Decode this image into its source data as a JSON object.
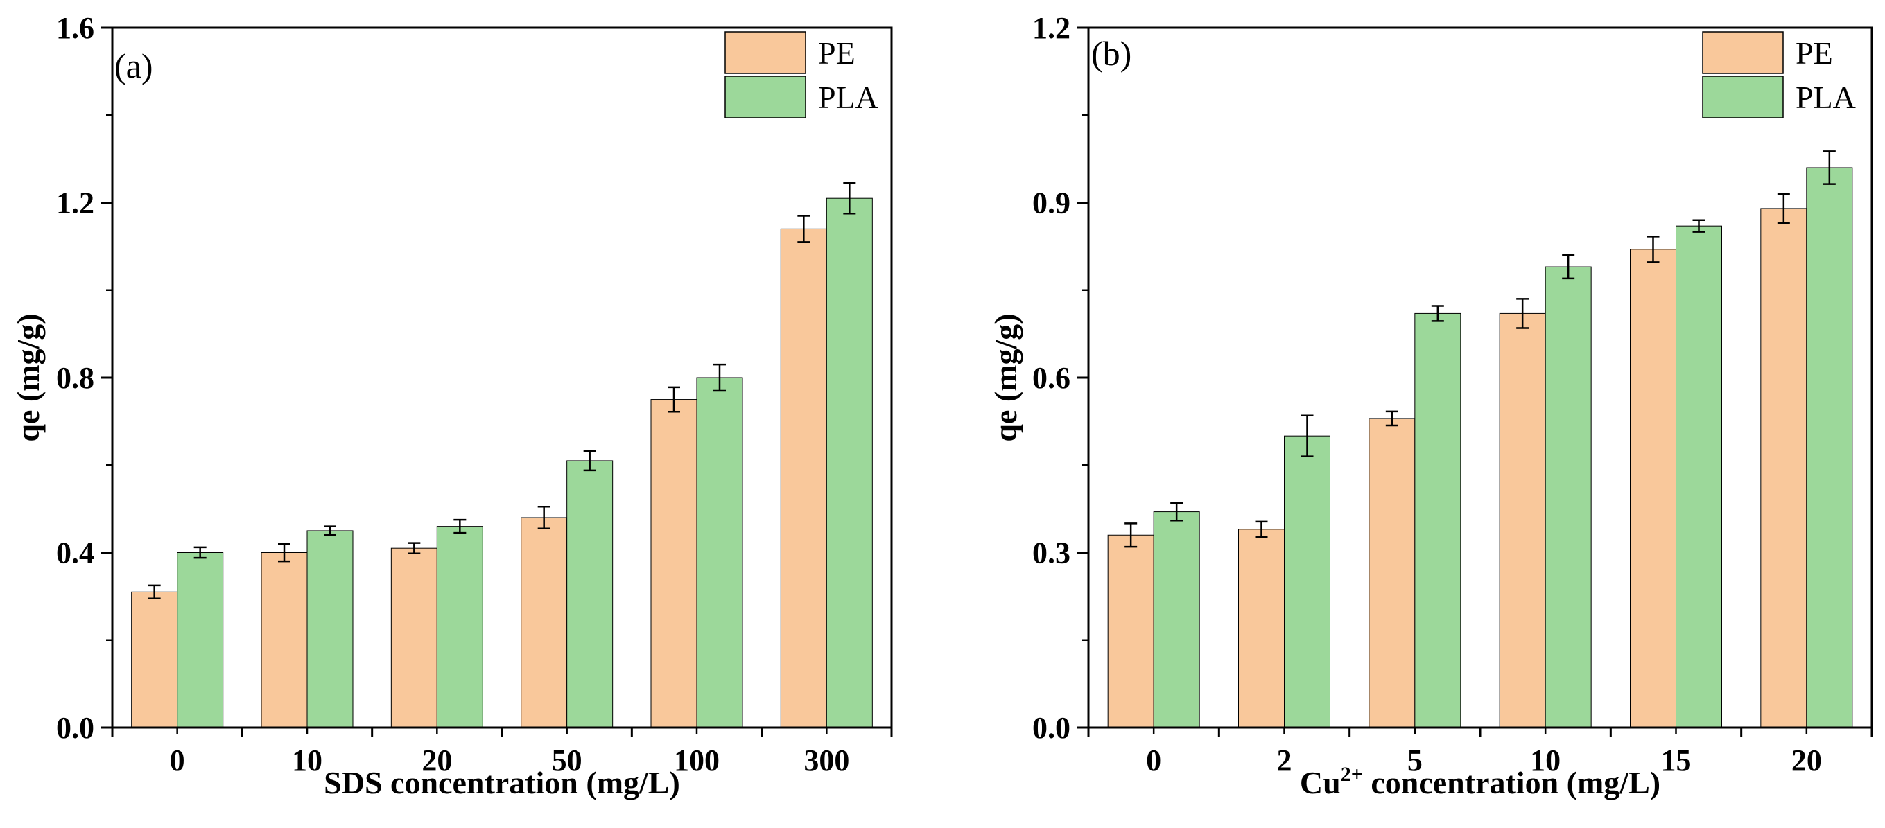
{
  "colors": {
    "PE": "#f9c89b",
    "PLA": "#9cd89a",
    "axis": "#000000"
  },
  "chart_data": [
    {
      "type": "bar",
      "panel_label": "(a)",
      "title": "",
      "xlabel_parts": {
        "pre": "",
        "sup": "",
        "post": "SDS concentration (mg/L)"
      },
      "ylabel": "qe (mg/g)",
      "categories": [
        "0",
        "10",
        "20",
        "50",
        "100",
        "300"
      ],
      "ylim": [
        0,
        1.6
      ],
      "yticks": [
        0,
        0.4,
        0.8,
        1.2,
        1.6
      ],
      "ytick_labels": [
        "0.0",
        "0.4",
        "0.8",
        "1.2",
        "1.6"
      ],
      "legend_position": "top-right",
      "series": [
        {
          "name": "PE",
          "values": [
            0.31,
            0.4,
            0.41,
            0.48,
            0.75,
            1.14
          ],
          "errors": [
            0.015,
            0.02,
            0.012,
            0.025,
            0.028,
            0.03
          ]
        },
        {
          "name": "PLA",
          "values": [
            0.4,
            0.45,
            0.46,
            0.61,
            0.8,
            1.21
          ],
          "errors": [
            0.012,
            0.01,
            0.015,
            0.022,
            0.03,
            0.035
          ]
        }
      ]
    },
    {
      "type": "bar",
      "panel_label": "(b)",
      "title": "",
      "xlabel_parts": {
        "pre": "Cu",
        "sup": "2+",
        "post": " concentration (mg/L)"
      },
      "ylabel": "qe (mg/g)",
      "categories": [
        "0",
        "2",
        "5",
        "10",
        "15",
        "20"
      ],
      "ylim": [
        0,
        1.2
      ],
      "yticks": [
        0,
        0.3,
        0.6,
        0.9,
        1.2
      ],
      "ytick_labels": [
        "0.0",
        "0.3",
        "0.6",
        "0.9",
        "1.2"
      ],
      "legend_position": "top-right",
      "series": [
        {
          "name": "PE",
          "values": [
            0.33,
            0.34,
            0.53,
            0.71,
            0.82,
            0.89
          ],
          "errors": [
            0.02,
            0.013,
            0.012,
            0.025,
            0.022,
            0.025
          ]
        },
        {
          "name": "PLA",
          "values": [
            0.37,
            0.5,
            0.71,
            0.79,
            0.86,
            0.96
          ],
          "errors": [
            0.015,
            0.035,
            0.013,
            0.02,
            0.01,
            0.028
          ]
        }
      ]
    }
  ]
}
